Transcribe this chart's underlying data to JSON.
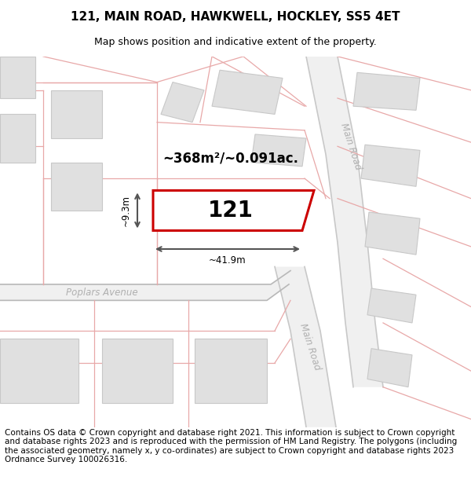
{
  "title": "121, MAIN ROAD, HAWKWELL, HOCKLEY, SS5 4ET",
  "subtitle": "Map shows position and indicative extent of the property.",
  "footer": "Contains OS data © Crown copyright and database right 2021. This information is subject to Crown copyright and database rights 2023 and is reproduced with the permission of HM Land Registry. The polygons (including the associated geometry, namely x, y co-ordinates) are subject to Crown copyright and database rights 2023 Ordnance Survey 100026316.",
  "area_text": "~368m²/~0.091ac.",
  "width_text": "~41.9m",
  "height_text": "~9.3m",
  "plot_number": "121",
  "bg_color": "#ffffff",
  "highlight_color": "#cc0000",
  "dim_line_color": "#555555",
  "parcel_edge": "#e8a8a8",
  "building_fill": "#e0e0e0",
  "building_edge": "#c8c8c8",
  "road_fill": "#eeeeee",
  "road_label_color": "#b0b0b0",
  "title_fontsize": 11,
  "subtitle_fontsize": 9,
  "footer_fontsize": 7.5
}
